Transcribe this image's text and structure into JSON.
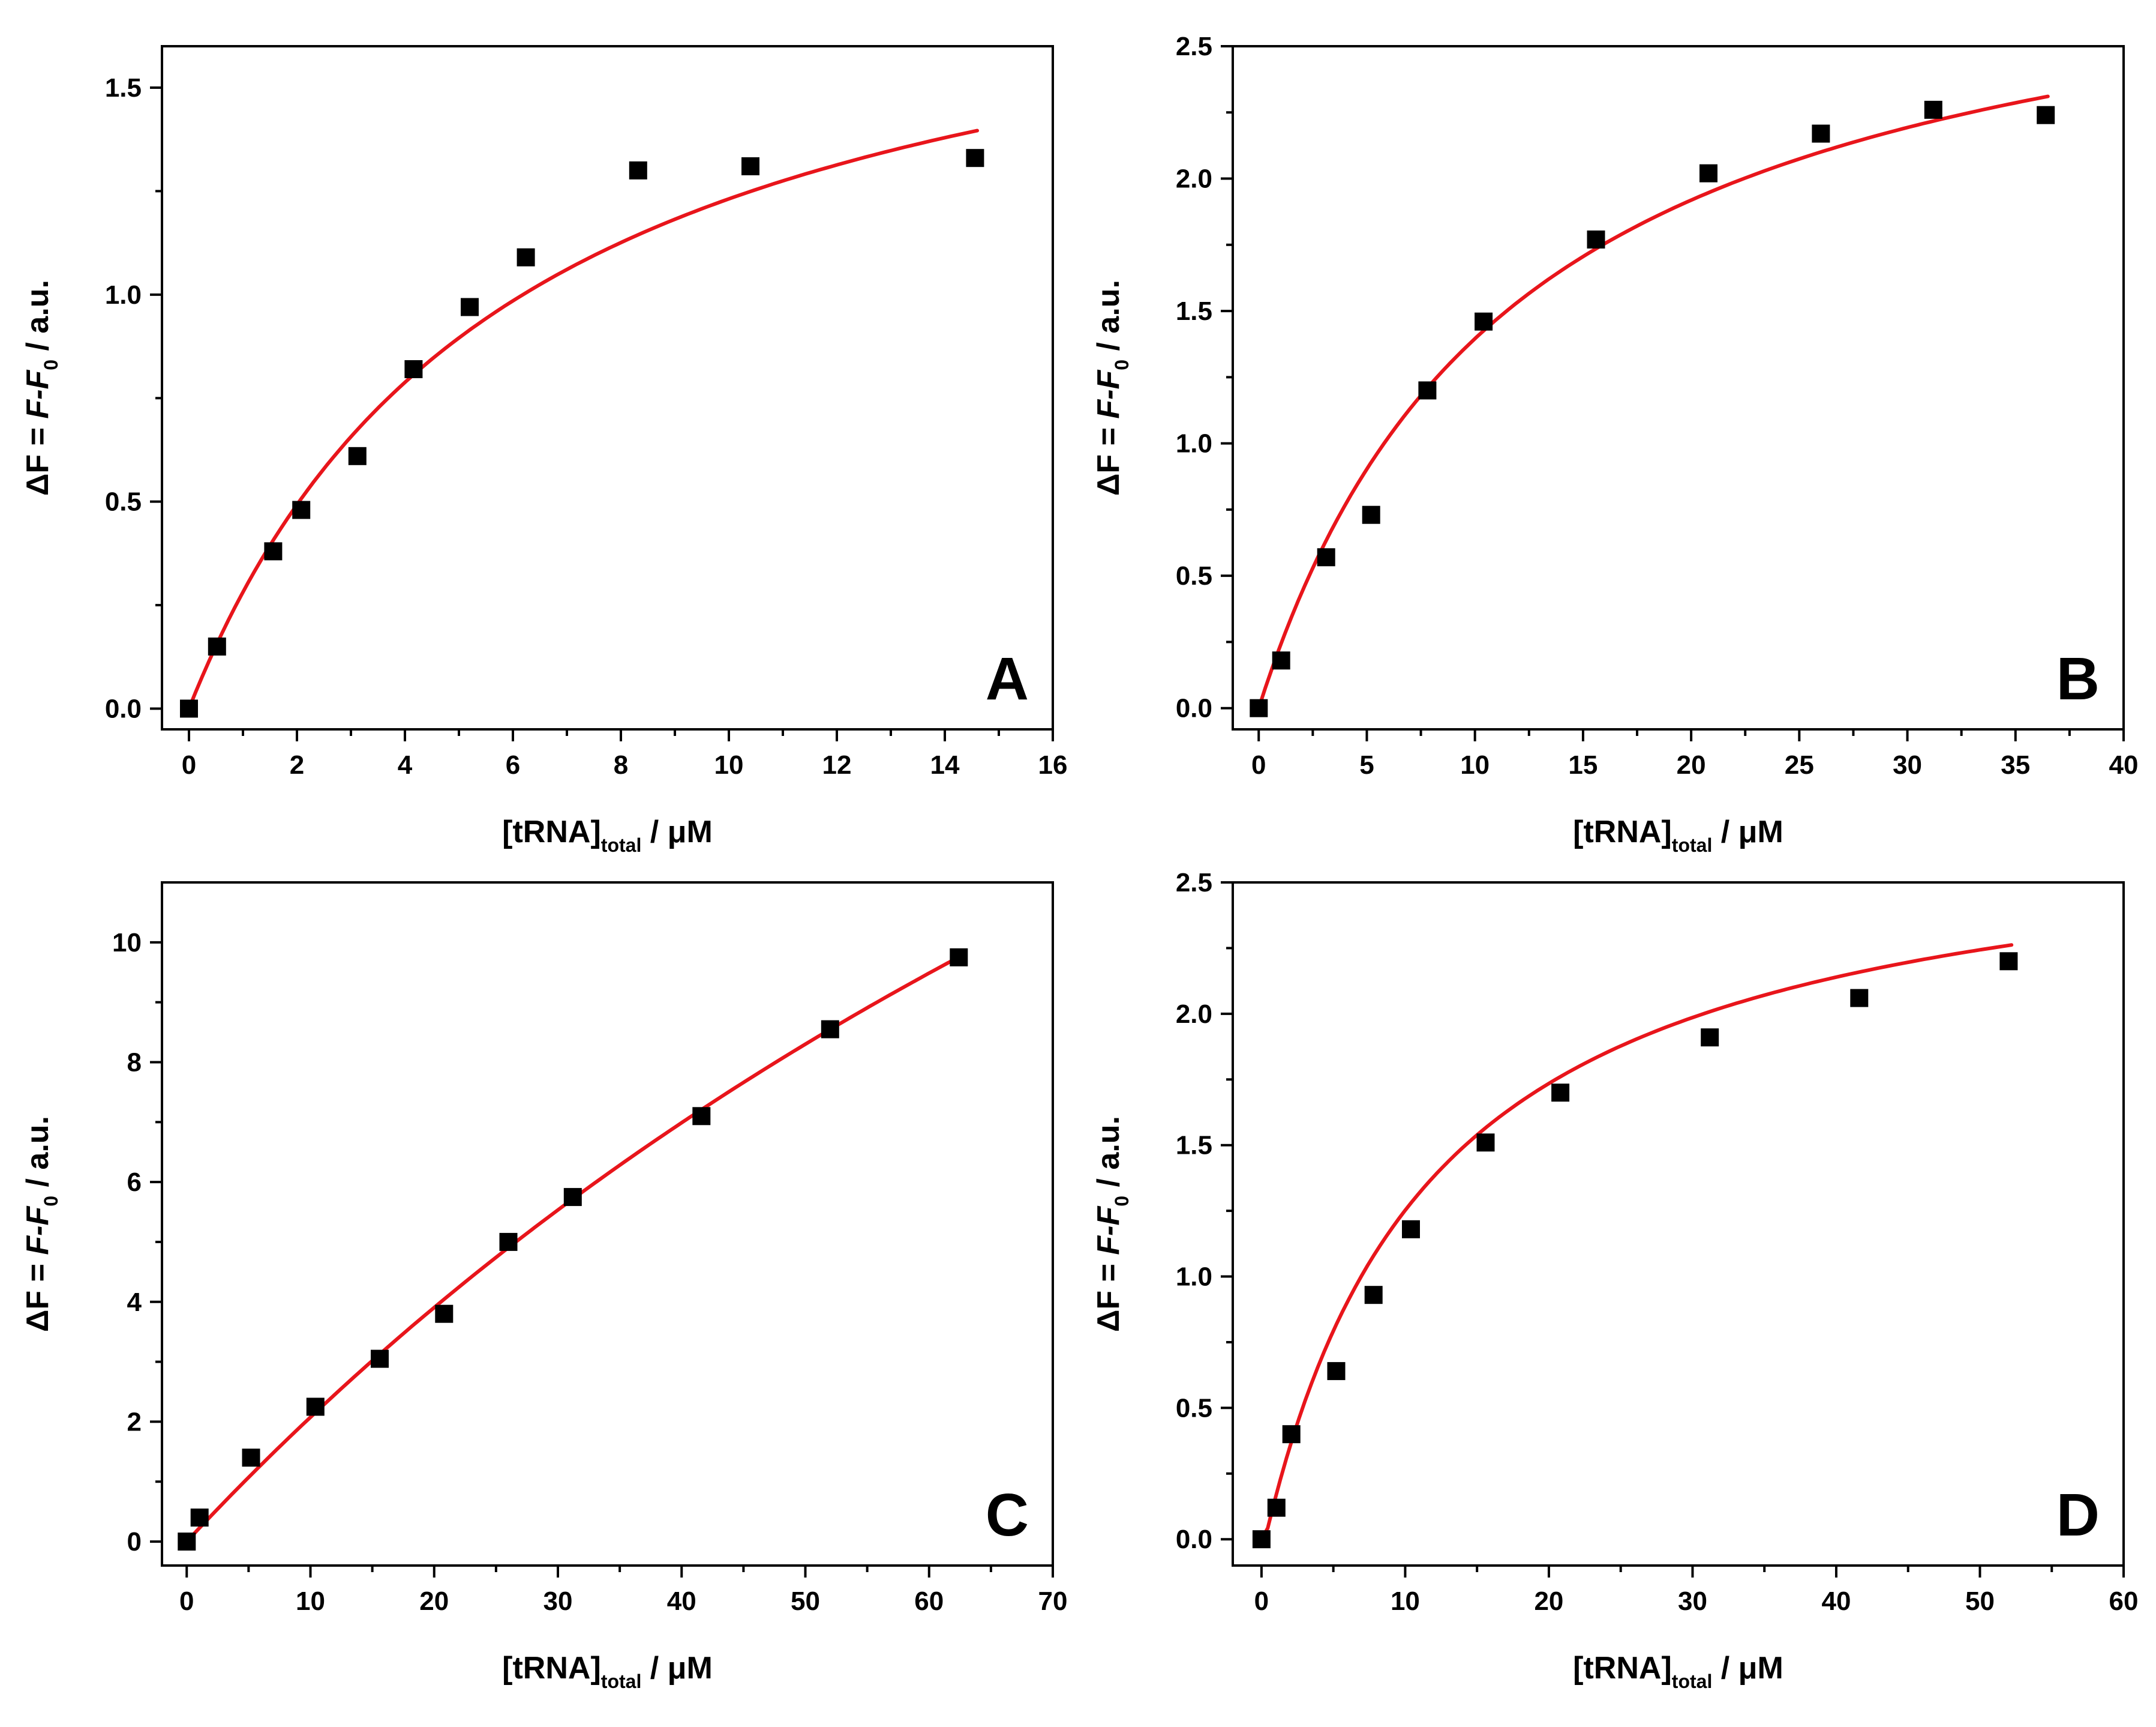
{
  "chart_data": [
    {
      "type": "scatter",
      "panel": "A",
      "xlabel": "[tRNA]",
      "xlabel_sub": "total",
      "xlabel_unit": " / μM",
      "ylabel_prefix": "ΔF = ",
      "ylabel_var": "F",
      "ylabel_minus": "-F",
      "ylabel_sub": "0",
      "ylabel_unit": " / a.u.",
      "xlim": [
        -0.5,
        16
      ],
      "ylim": [
        -0.05,
        1.6
      ],
      "xticks": [
        0,
        2,
        4,
        6,
        8,
        10,
        12,
        14,
        16
      ],
      "yticks": [
        0.0,
        0.5,
        1.0,
        1.5
      ],
      "xtick_labels": [
        "0",
        "2",
        "4",
        "6",
        "8",
        "10",
        "12",
        "14",
        "16"
      ],
      "ytick_labels": [
        "0.0",
        "0.5",
        "1.0",
        "1.5"
      ],
      "series": [
        {
          "name": "data",
          "marker": "square",
          "color": "#000000",
          "x": [
            0.0,
            0.52,
            1.56,
            2.08,
            3.12,
            4.16,
            5.2,
            6.24,
            8.32,
            10.4,
            14.56
          ],
          "y": [
            0.0,
            0.15,
            0.38,
            0.48,
            0.61,
            0.82,
            0.97,
            1.09,
            1.3,
            1.31,
            1.33
          ]
        },
        {
          "name": "fit",
          "line": true,
          "color": "#e8151b",
          "model": "hyperbolic",
          "Fmax": 1.97,
          "Kd": 6.0,
          "x_range": [
            0,
            14.6
          ]
        }
      ]
    },
    {
      "type": "scatter",
      "panel": "B",
      "xlabel": "[tRNA]",
      "xlabel_sub": "total",
      "xlabel_unit": " / μM",
      "ylabel_prefix": "ΔF = ",
      "ylabel_var": "F",
      "ylabel_minus": "-F",
      "ylabel_sub": "0",
      "ylabel_unit": " / a.u.",
      "xlim": [
        -1.2,
        40
      ],
      "ylim": [
        -0.08,
        2.5
      ],
      "xticks": [
        0,
        5,
        10,
        15,
        20,
        25,
        30,
        35,
        40
      ],
      "yticks": [
        0.0,
        0.5,
        1.0,
        1.5,
        2.0,
        2.5
      ],
      "xtick_labels": [
        "0",
        "5",
        "10",
        "15",
        "20",
        "25",
        "30",
        "35",
        "40"
      ],
      "ytick_labels": [
        "0.0",
        "0.5",
        "1.0",
        "1.5",
        "2.0",
        "2.5"
      ],
      "series": [
        {
          "name": "data",
          "marker": "square",
          "color": "#000000",
          "x": [
            0.0,
            1.04,
            3.12,
            5.2,
            7.8,
            10.4,
            15.6,
            20.8,
            26.0,
            31.2,
            36.4
          ],
          "y": [
            0.0,
            0.18,
            0.57,
            0.73,
            1.2,
            1.46,
            1.77,
            2.02,
            2.17,
            2.26,
            2.24
          ]
        },
        {
          "name": "fit",
          "line": true,
          "color": "#e8151b",
          "model": "hyperbolic",
          "Fmax": 3.07,
          "Kd": 12.0,
          "x_range": [
            0,
            36.5
          ]
        }
      ]
    },
    {
      "type": "scatter",
      "panel": "C",
      "xlabel": "[tRNA]",
      "xlabel_sub": "total",
      "xlabel_unit": " / μM",
      "ylabel_prefix": "ΔF = ",
      "ylabel_var": "F",
      "ylabel_minus": "-F",
      "ylabel_sub": "0",
      "ylabel_unit": " / a.u.",
      "xlim": [
        -2,
        70
      ],
      "ylim": [
        -0.4,
        11
      ],
      "xticks": [
        0,
        10,
        20,
        30,
        40,
        50,
        60,
        70
      ],
      "yticks": [
        0,
        2,
        4,
        6,
        8,
        10
      ],
      "xtick_labels": [
        "0",
        "10",
        "20",
        "30",
        "40",
        "50",
        "60",
        "70"
      ],
      "ytick_labels": [
        "0",
        "2",
        "4",
        "6",
        "8",
        "10"
      ],
      "series": [
        {
          "name": "data",
          "marker": "square",
          "color": "#000000",
          "x": [
            0.0,
            1.04,
            5.2,
            10.4,
            15.6,
            20.8,
            26.0,
            31.2,
            41.6,
            52.0,
            62.4
          ],
          "y": [
            0.0,
            0.4,
            1.4,
            2.25,
            3.05,
            3.8,
            5.0,
            5.75,
            7.1,
            8.55,
            9.75
          ]
        },
        {
          "name": "fit",
          "line": true,
          "color": "#e8151b",
          "model": "hyperbolic",
          "Fmax": 33.2,
          "Kd": 150.0,
          "x_range": [
            0,
            62.5
          ]
        }
      ]
    },
    {
      "type": "scatter",
      "panel": "D",
      "xlabel": "[tRNA]",
      "xlabel_sub": "total",
      "xlabel_unit": " / μM",
      "ylabel_prefix": "ΔF = ",
      "ylabel_var": "F",
      "ylabel_minus": "-F",
      "ylabel_sub": "0",
      "ylabel_unit": " / a.u.",
      "xlim": [
        -2,
        60
      ],
      "ylim": [
        -0.1,
        2.5
      ],
      "xticks": [
        0,
        10,
        20,
        30,
        40,
        50,
        60
      ],
      "yticks": [
        0.0,
        0.5,
        1.0,
        1.5,
        2.0,
        2.5
      ],
      "xtick_labels": [
        "0",
        "10",
        "20",
        "30",
        "40",
        "50",
        "60"
      ],
      "ytick_labels": [
        "0.0",
        "0.5",
        "1.0",
        "1.5",
        "2.0",
        "2.5"
      ],
      "series": [
        {
          "name": "data",
          "marker": "square",
          "color": "#000000",
          "x": [
            0.0,
            1.04,
            2.08,
            5.2,
            7.8,
            10.4,
            15.6,
            20.8,
            31.2,
            41.6,
            52.0
          ],
          "y": [
            0.0,
            0.12,
            0.4,
            0.64,
            0.93,
            1.18,
            1.51,
            1.7,
            1.91,
            2.06,
            2.2
          ]
        },
        {
          "name": "fit",
          "line": true,
          "color": "#e8151b",
          "model": "hyperbolic_offset",
          "Fmax": 2.78,
          "Kd": 11.9,
          "x0": 0.25,
          "x_range": [
            0,
            52.2
          ]
        }
      ]
    }
  ]
}
